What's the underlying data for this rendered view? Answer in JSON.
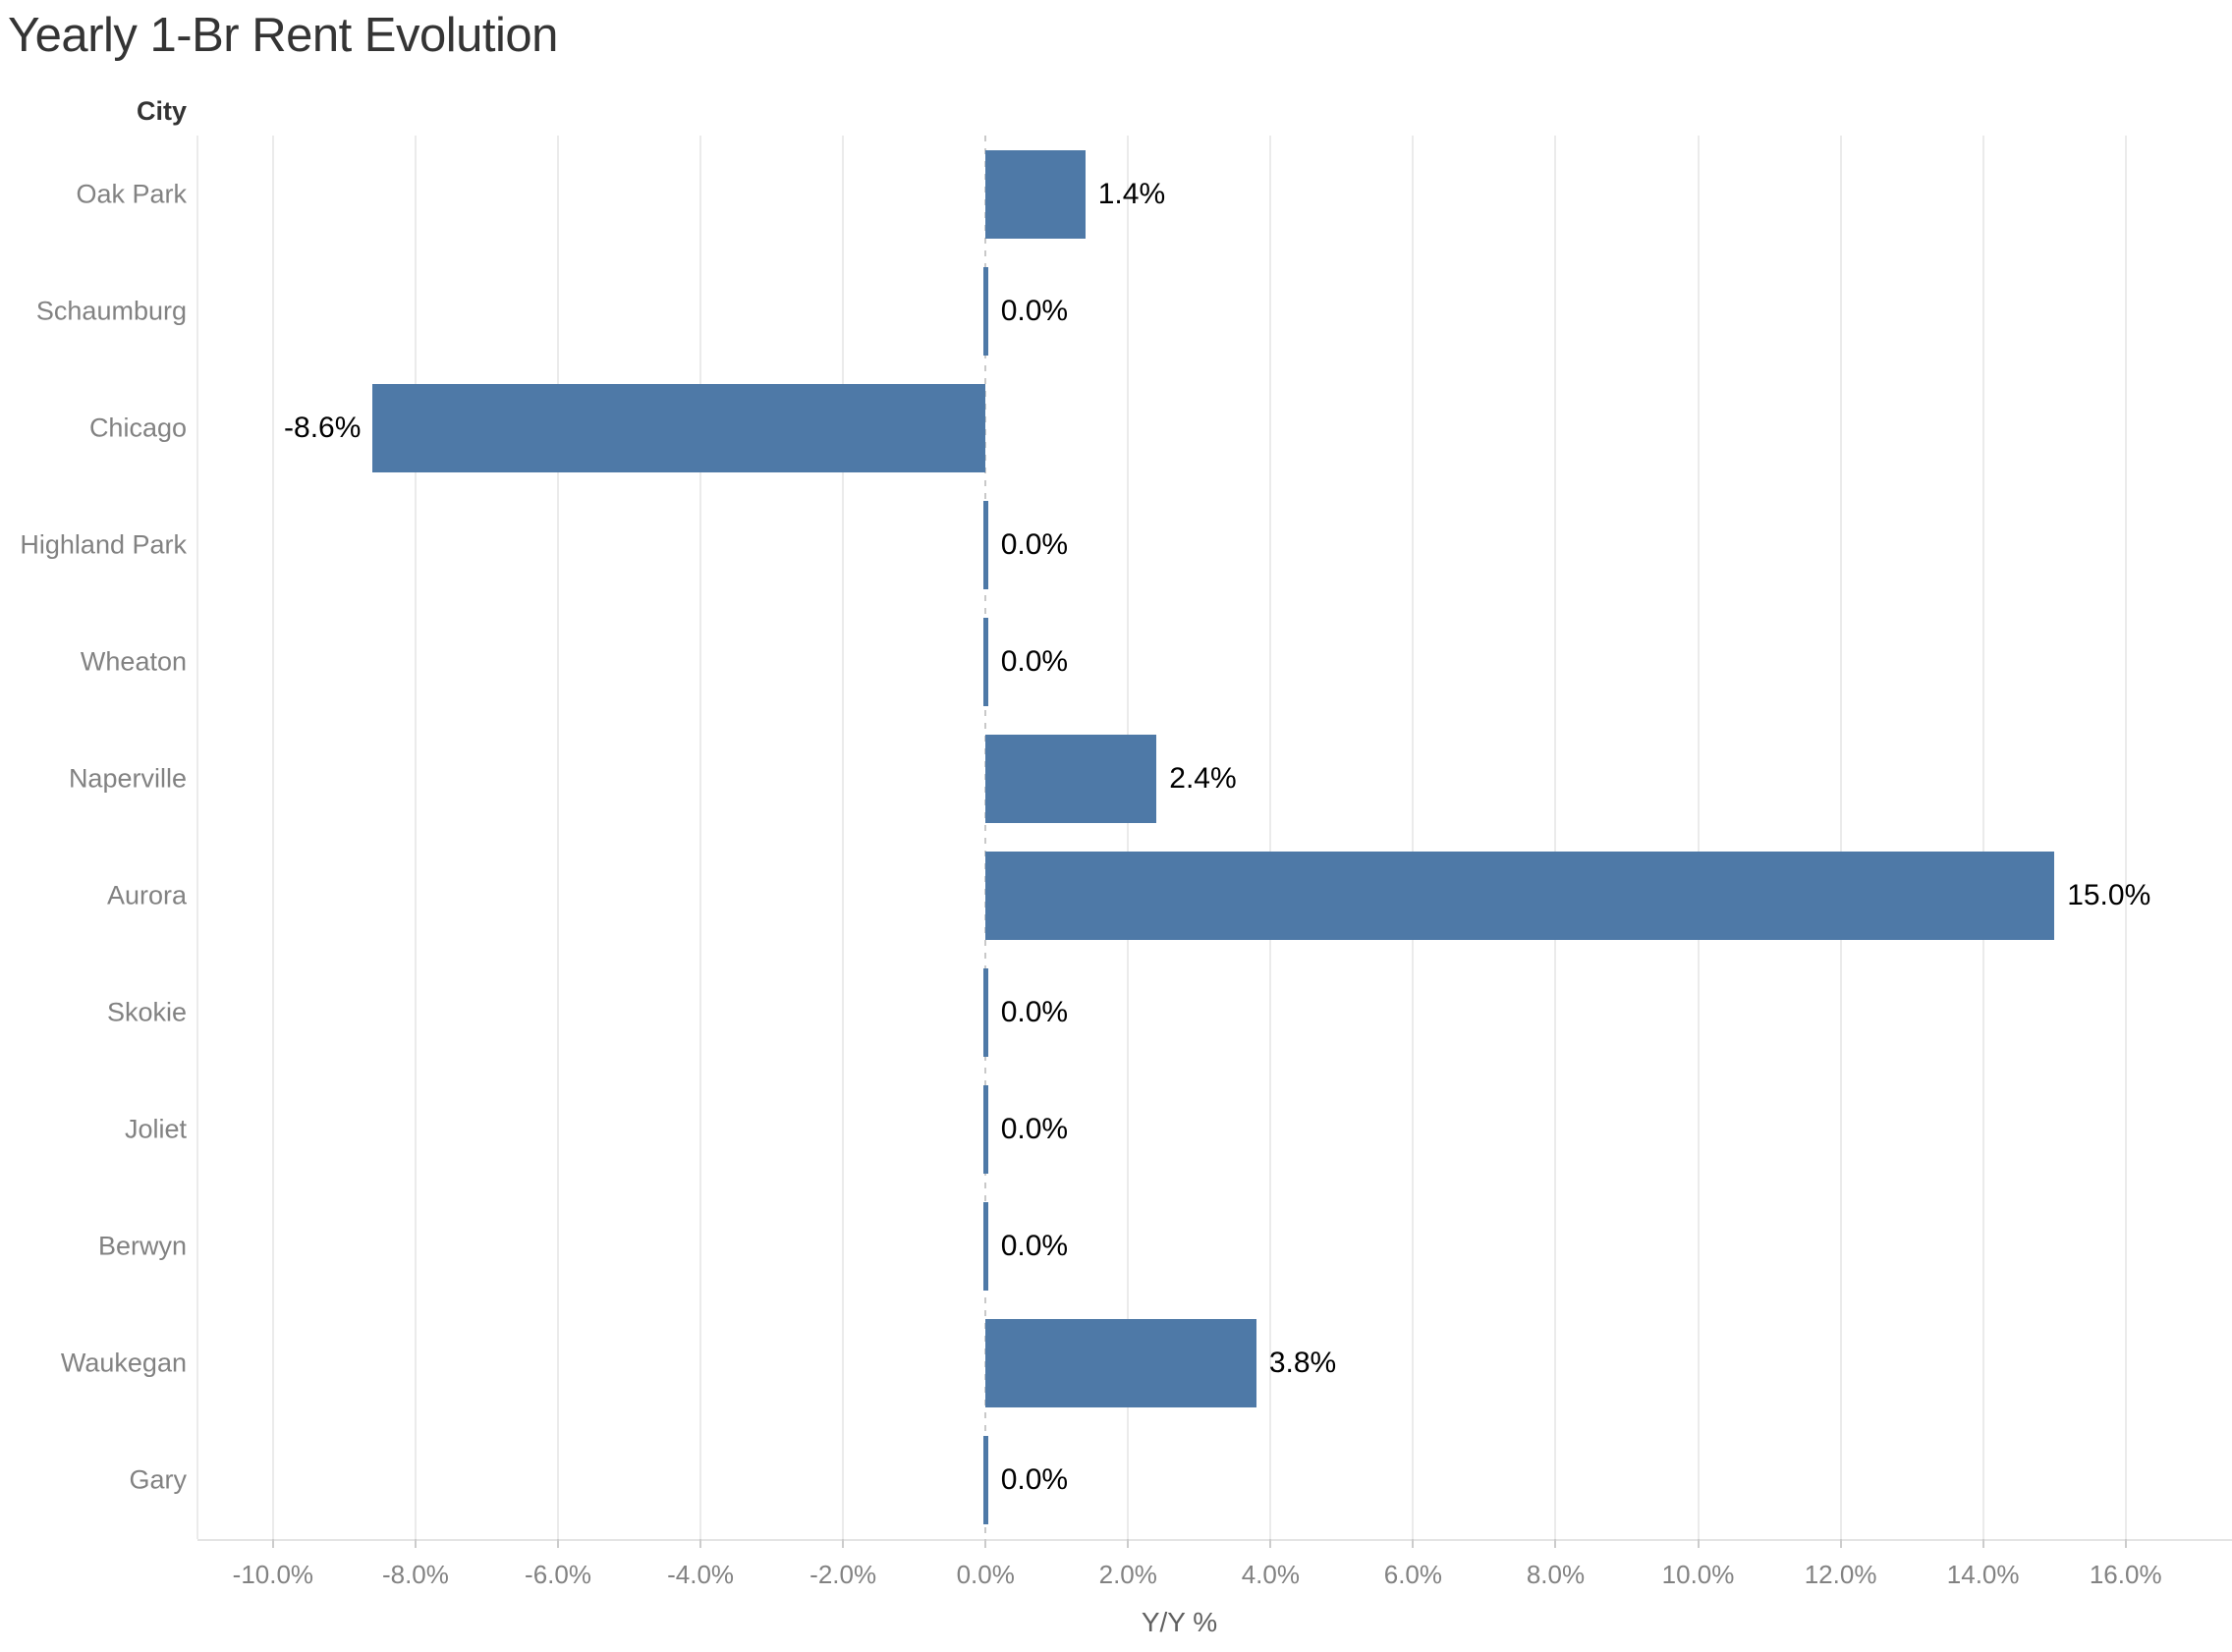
{
  "chart_data": {
    "type": "bar",
    "orientation": "horizontal",
    "title": "Yearly 1-Br Rent Evolution",
    "category_axis_title": "City",
    "value_axis_title": "Y/Y %",
    "categories": [
      "Oak Park",
      "Schaumburg",
      "Chicago",
      "Highland Park",
      "Wheaton",
      "Naperville",
      "Aurora",
      "Skokie",
      "Joliet",
      "Berwyn",
      "Waukegan",
      "Gary"
    ],
    "values": [
      1.4,
      0.0,
      -8.6,
      0.0,
      0.0,
      2.4,
      15.0,
      0.0,
      0.0,
      0.0,
      3.8,
      0.0
    ],
    "value_labels": [
      "1.4%",
      "0.0%",
      "-8.6%",
      "0.0%",
      "0.0%",
      "2.4%",
      "15.0%",
      "0.0%",
      "0.0%",
      "0.0%",
      "3.8%",
      "0.0%"
    ],
    "x_ticks": [
      -10,
      -8,
      -6,
      -4,
      -2,
      0,
      2,
      4,
      6,
      8,
      10,
      12,
      14,
      16
    ],
    "x_tick_labels": [
      "-10.0%",
      "-8.0%",
      "-6.0%",
      "-4.0%",
      "-2.0%",
      "0.0%",
      "2.0%",
      "4.0%",
      "6.0%",
      "8.0%",
      "10.0%",
      "12.0%",
      "14.0%",
      "16.0%"
    ],
    "xlim": [
      -11.06,
      17.41
    ],
    "grid": true,
    "zero_line_style": "dashed",
    "legend": "none",
    "colors": {
      "bar": "#4e79a7",
      "title_text": "#343434",
      "category_header_text": "#333333",
      "axis_text": "#828282",
      "value_label_text": "#000000",
      "gridline": "#ebebeb",
      "zero_line": "#c9c9c9",
      "axis_line": "#e4e4e4",
      "tick_mark": "#cccccc",
      "background": "#ffffff"
    }
  }
}
